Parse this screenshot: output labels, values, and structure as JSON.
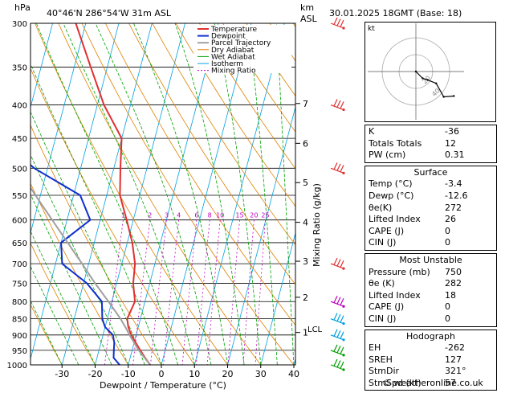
{
  "header": {
    "hpa_unit": "hPa",
    "location": "40°46'N  286°54'W  31m  ASL",
    "km_unit": "km",
    "asl_unit": "ASL",
    "datetime": "30.01.2025  18GMT  (Base: 18)"
  },
  "colors": {
    "temperature": "#e03030",
    "dewpoint": "#1030d0",
    "parcel": "#a0a0a0",
    "dry_adiabat": "#e08000",
    "wet_adiabat": "#00a000",
    "isotherm": "#00a0e0",
    "mixing_ratio": "#c000c0"
  },
  "chart_data": {
    "type": "line",
    "title": "",
    "xlabel": "Dewpoint / Temperature (°C)",
    "ylabel": "",
    "right_label": "Mixing Ratio (g/kg)",
    "pressure_ticks": [
      300,
      350,
      400,
      450,
      500,
      550,
      600,
      650,
      700,
      750,
      800,
      850,
      900,
      950,
      1000
    ],
    "temp_ticks": [
      -30,
      -20,
      -10,
      0,
      10,
      20,
      30,
      40
    ],
    "km_ticks": [
      {
        "label": "7",
        "p": 398
      },
      {
        "label": "6",
        "p": 458
      },
      {
        "label": "5",
        "p": 526
      },
      {
        "label": "4",
        "p": 605
      },
      {
        "label": "3",
        "p": 694
      },
      {
        "label": "2",
        "p": 788
      },
      {
        "label": "1",
        "p": 892
      }
    ],
    "lcl": {
      "label": "LCL",
      "p": 880
    },
    "mixing_ratio_labels": [
      "1",
      "2",
      "3",
      "4",
      "6",
      "8",
      "10",
      "15",
      "20",
      "25"
    ],
    "mixing_ratio_values": [
      1,
      2,
      3,
      4,
      6,
      8,
      10,
      15,
      20,
      25
    ],
    "legend": [
      "Temperature",
      "Dewpoint",
      "Parcel Trajectory",
      "Dry Adiabat",
      "Wet Adiabat",
      "Isotherm",
      "Mixing Ratio"
    ],
    "legend_placement": "top-center",
    "series": [
      {
        "name": "Temperature",
        "p": [
          1000,
          975,
          950,
          925,
          900,
          875,
          850,
          800,
          750,
          700,
          650,
          600,
          550,
          500,
          450,
          400,
          350,
          300
        ],
        "t": [
          -3.4,
          -5.5,
          -7.5,
          -9.5,
          -11.5,
          -13,
          -14,
          -13,
          -15,
          -16,
          -18.5,
          -22,
          -26,
          -28,
          -30,
          -38,
          -45,
          -53
        ]
      },
      {
        "name": "Dewpoint",
        "p": [
          1000,
          975,
          950,
          925,
          900,
          875,
          850,
          800,
          750,
          700,
          650,
          600,
          550,
          500,
          450,
          400,
          350,
          300
        ],
        "t": [
          -12.6,
          -15,
          -15.5,
          -16,
          -17,
          -20,
          -21.5,
          -23,
          -29,
          -38,
          -40,
          -33,
          -38,
          -54,
          -67,
          -67,
          -69,
          -76
        ]
      },
      {
        "name": "Parcel Trajectory",
        "p": [
          1000,
          950,
          900,
          880,
          850,
          800,
          750,
          700,
          650,
          600,
          550,
          500,
          450,
          400,
          350,
          300
        ],
        "t": [
          -3.4,
          -8,
          -12,
          -13.5,
          -16,
          -21,
          -26.5,
          -32,
          -38,
          -44.5,
          -51.5,
          -59,
          -67,
          -75,
          -84,
          -93
        ]
      }
    ]
  },
  "hodograph": {
    "unit_label": "kt",
    "ring_labels": [
      "20",
      "40"
    ],
    "ring_values": [
      20,
      40
    ],
    "u": [
      0,
      8,
      14,
      24,
      33,
      45
    ],
    "v": [
      0,
      -8,
      -10,
      -14,
      -30,
      -29
    ]
  },
  "indices": {
    "rows": [
      {
        "label": "K",
        "value": "-36"
      },
      {
        "label": "Totals Totals",
        "value": "12"
      },
      {
        "label": "PW (cm)",
        "value": "0.31"
      }
    ]
  },
  "surface": {
    "title": "Surface",
    "rows": [
      {
        "label": "Temp (°C)",
        "value": "-3.4"
      },
      {
        "label": "Dewp (°C)",
        "value": "-12.6"
      },
      {
        "label": "θe(K)",
        "value": "272"
      },
      {
        "label": "Lifted Index",
        "value": "26"
      },
      {
        "label": "CAPE (J)",
        "value": "0"
      },
      {
        "label": "CIN (J)",
        "value": "0"
      }
    ]
  },
  "most_unstable": {
    "title": "Most Unstable",
    "rows": [
      {
        "label": "Pressure (mb)",
        "value": "750"
      },
      {
        "label": "θe (K)",
        "value": "282"
      },
      {
        "label": "Lifted Index",
        "value": "18"
      },
      {
        "label": "CAPE (J)",
        "value": "0"
      },
      {
        "label": "CIN (J)",
        "value": "0"
      }
    ]
  },
  "hodograph_params": {
    "title": "Hodograph",
    "rows": [
      {
        "label": "EH",
        "value": "-262"
      },
      {
        "label": "SREH",
        "value": "127"
      },
      {
        "label": "StmDir",
        "value": "321°"
      },
      {
        "label": "StmSpd (kt)",
        "value": "57"
      }
    ]
  },
  "wind_barbs": [
    {
      "p": 300,
      "color": "#e03030"
    },
    {
      "p": 400,
      "color": "#e03030"
    },
    {
      "p": 500,
      "color": "#e03030"
    },
    {
      "p": 700,
      "color": "#e03030"
    },
    {
      "p": 800,
      "color": "#c000c0"
    },
    {
      "p": 850,
      "color": "#00a0e0"
    },
    {
      "p": 900,
      "color": "#00a0e0"
    },
    {
      "p": 950,
      "color": "#00a000"
    },
    {
      "p": 1000,
      "color": "#00a000"
    }
  ],
  "footer": {
    "credit": "© weatheronline.co.uk"
  }
}
